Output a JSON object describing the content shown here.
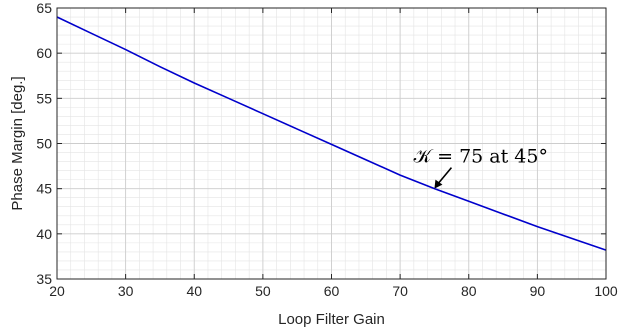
{
  "chart_data": {
    "type": "line",
    "title": "",
    "xlabel": "Loop Filter Gain",
    "ylabel": "Phase Margin [deg.]",
    "xlim": [
      20,
      100
    ],
    "ylim": [
      35,
      65
    ],
    "xticks": [
      20,
      30,
      40,
      50,
      60,
      70,
      80,
      90,
      100
    ],
    "yticks": [
      35,
      40,
      45,
      50,
      55,
      60,
      65
    ],
    "grid": true,
    "minor_grid": true,
    "series": [
      {
        "color": "#0000cc",
        "x": [
          20,
          25,
          30,
          35,
          40,
          45,
          50,
          55,
          60,
          65,
          70,
          75,
          80,
          85,
          90,
          95,
          100
        ],
        "y": [
          64.0,
          62.2,
          60.4,
          58.5,
          56.7,
          55.0,
          53.3,
          51.6,
          49.9,
          48.2,
          46.5,
          45.0,
          43.6,
          42.2,
          40.8,
          39.5,
          38.2
        ]
      }
    ],
    "annotations": [
      {
        "text": "𝒦 = 75 at 45°",
        "x": 75,
        "y": 45,
        "arrow": true
      }
    ]
  }
}
